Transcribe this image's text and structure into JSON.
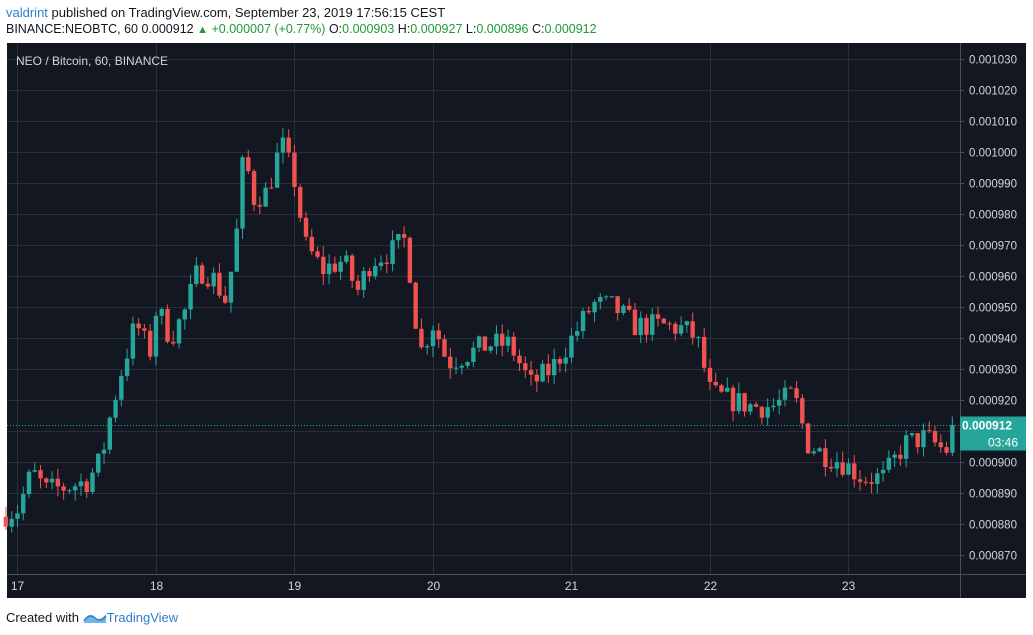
{
  "header": {
    "author": "valdrint",
    "published_text": "published on TradingView.com, September 23, 2019 17:56:15 CEST",
    "symbol": "BINANCE:NEOBTC, 60",
    "price": "0.000912",
    "change": "+0.000007 (+0.77%)",
    "open_label": "O:",
    "open_value": "0.000903",
    "high_label": "H:",
    "high_value": "0.000927",
    "low_label": "L:",
    "low_value": "0.000896",
    "close_label": "C:",
    "close_value": "0.000912"
  },
  "footer": {
    "created_with": "Created with",
    "brand": "TradingView"
  },
  "colors": {
    "background": "#131722",
    "grid": "#2a2e39",
    "up": "#26a69a",
    "down": "#ef5350",
    "axis_text": "#d1d4dc",
    "last_price": "#26a69a"
  },
  "chart_data": {
    "type": "candlestick",
    "title": "NEO / Bitcoin, 60, BINANCE",
    "ylim": [
      0.000864,
      0.001035
    ],
    "y_ticks": [
      "0.001030",
      "0.001020",
      "0.001010",
      "0.001000",
      "0.000990",
      "0.000980",
      "0.000970",
      "0.000960",
      "0.000950",
      "0.000940",
      "0.000930",
      "0.000920",
      "0.000910",
      "0.000900",
      "0.000890",
      "0.000880",
      "0.000870"
    ],
    "x_ticks": [
      "17",
      "18",
      "19",
      "20",
      "21",
      "22",
      "23"
    ],
    "last_price": "0.000912",
    "countdown": "03:46",
    "grid": true,
    "price_path": [
      [
        16.9,
        0.000882
      ],
      [
        17.05,
        0.000885
      ],
      [
        17.15,
        0.000897
      ],
      [
        17.25,
        0.000891
      ],
      [
        17.4,
        0.000892
      ],
      [
        17.55,
        0.000894
      ],
      [
        17.65,
        0.000901
      ],
      [
        17.72,
        0.000916
      ],
      [
        17.8,
        0.00093
      ],
      [
        17.9,
        0.000945
      ],
      [
        18.0,
        0.000935
      ],
      [
        18.05,
        0.00095
      ],
      [
        18.15,
        0.00094
      ],
      [
        18.25,
        0.000948
      ],
      [
        18.35,
        0.000962
      ],
      [
        18.45,
        0.00096
      ],
      [
        18.55,
        0.000952
      ],
      [
        18.62,
        0.00097
      ],
      [
        18.68,
        0.001
      ],
      [
        18.75,
        0.000985
      ],
      [
        18.85,
        0.000987
      ],
      [
        18.95,
        0.001003
      ],
      [
        19.05,
        0.00099
      ],
      [
        19.12,
        0.00097
      ],
      [
        19.25,
        0.000962
      ],
      [
        19.4,
        0.000965
      ],
      [
        19.5,
        0.000955
      ],
      [
        19.6,
        0.000965
      ],
      [
        19.75,
        0.000968
      ],
      [
        19.85,
        0.000972
      ],
      [
        19.95,
        0.000935
      ],
      [
        20.05,
        0.000945
      ],
      [
        20.15,
        0.000932
      ],
      [
        20.3,
        0.000935
      ],
      [
        20.45,
        0.000938
      ],
      [
        20.6,
        0.000938
      ],
      [
        20.75,
        0.000925
      ],
      [
        20.9,
        0.00093
      ],
      [
        21.05,
        0.00094
      ],
      [
        21.2,
        0.000951
      ],
      [
        21.35,
        0.00095
      ],
      [
        21.5,
        0.000944
      ],
      [
        21.7,
        0.000944
      ],
      [
        21.85,
        0.000943
      ],
      [
        21.95,
        0.00094
      ],
      [
        22.05,
        0.000922
      ],
      [
        22.2,
        0.00092
      ],
      [
        22.35,
        0.000918
      ],
      [
        22.5,
        0.000918
      ],
      [
        22.65,
        0.000922
      ],
      [
        22.75,
        0.000906
      ],
      [
        22.85,
        0.000903
      ],
      [
        23.0,
        0.0009
      ],
      [
        23.15,
        0.000895
      ],
      [
        23.3,
        0.000895
      ],
      [
        23.45,
        0.000906
      ],
      [
        23.6,
        0.000908
      ],
      [
        23.7,
        0.000905
      ],
      [
        23.75,
        0.000903
      ],
      [
        23.78,
        0.000912
      ]
    ]
  }
}
